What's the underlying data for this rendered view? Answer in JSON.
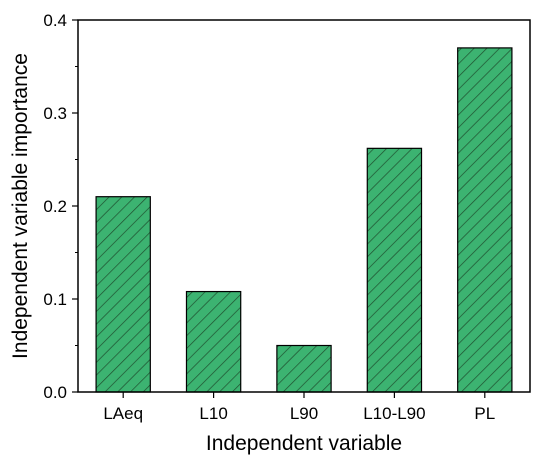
{
  "chart_data": {
    "type": "bar",
    "title": "",
    "xlabel": "Independent variable",
    "ylabel": "Independent variable importance",
    "categories": [
      "LAeq",
      "L10",
      "L90",
      "L10-L90",
      "PL"
    ],
    "values": [
      0.21,
      0.108,
      0.05,
      0.262,
      0.37
    ],
    "ylim": [
      0,
      0.4
    ],
    "yticks": [
      0.0,
      0.1,
      0.2,
      0.3,
      0.4
    ],
    "ytick_labels": [
      "0.0",
      "0.1",
      "0.2",
      "0.3",
      "0.4"
    ],
    "grid": false,
    "legend": "none",
    "bar_color": "#3cb371",
    "hatch": "diagonal",
    "hatch_color": "#1f4f2f",
    "edge_color": "#000000"
  }
}
